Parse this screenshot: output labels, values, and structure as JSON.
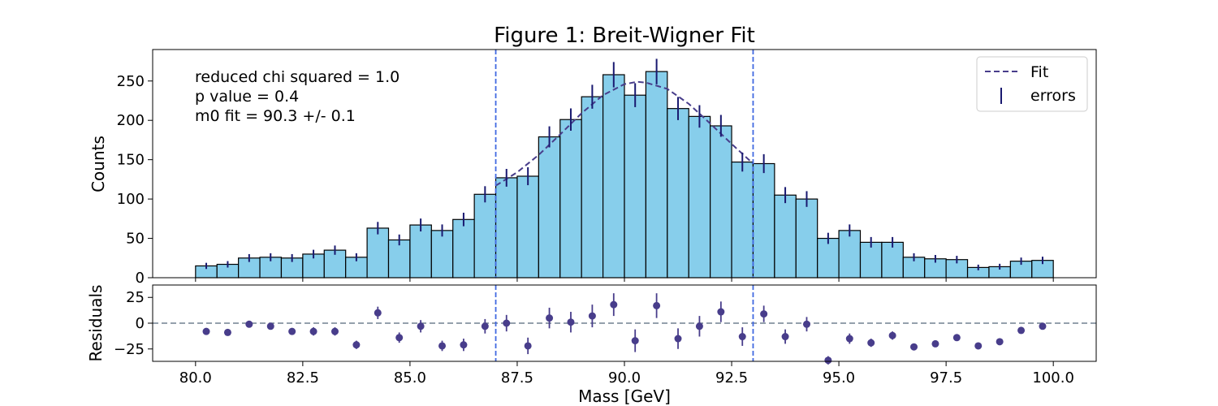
{
  "chart_data": [
    {
      "type": "bar",
      "panel": "main",
      "title": "Figure 1: Breit-Wigner Fit",
      "ylabel": "Counts",
      "xlim": [
        79,
        101
      ],
      "ylim": [
        0,
        290
      ],
      "yticks": [
        0,
        50,
        100,
        150,
        200,
        250
      ],
      "bar_color": "#87ceeb",
      "bin_width": 0.5,
      "x": [
        80.25,
        80.75,
        81.25,
        81.75,
        82.25,
        82.75,
        83.25,
        83.75,
        84.25,
        84.75,
        85.25,
        85.75,
        86.25,
        86.75,
        87.25,
        87.75,
        88.25,
        88.75,
        89.25,
        89.75,
        90.25,
        90.75,
        91.25,
        91.75,
        92.25,
        92.75,
        93.25,
        93.75,
        94.25,
        94.75,
        95.25,
        95.75,
        96.25,
        96.75,
        97.25,
        97.75,
        98.25,
        98.75,
        99.25,
        99.75
      ],
      "counts": [
        15,
        17,
        25,
        26,
        25,
        30,
        35,
        26,
        63,
        48,
        67,
        60,
        74,
        106,
        127,
        129,
        179,
        201,
        230,
        258,
        232,
        262,
        215,
        205,
        193,
        147,
        145,
        105,
        100,
        50,
        60,
        45,
        45,
        26,
        24,
        23,
        13,
        14,
        21,
        22
      ],
      "errors": [
        3.9,
        4.1,
        5.0,
        5.1,
        5.0,
        5.5,
        5.9,
        5.1,
        7.9,
        6.9,
        8.2,
        7.7,
        8.6,
        10.3,
        11.3,
        11.4,
        13.4,
        14.2,
        15.2,
        16.1,
        15.2,
        16.2,
        14.7,
        14.3,
        13.9,
        12.1,
        12.0,
        10.2,
        10.0,
        7.1,
        7.7,
        6.7,
        6.7,
        5.1,
        4.9,
        4.8,
        3.6,
        3.7,
        4.6,
        4.7
      ],
      "fit": {
        "name": "Fit",
        "style": "dashed",
        "color": "#483d8b",
        "x": [
          87.0,
          87.5,
          88.0,
          88.5,
          89.0,
          89.5,
          90.0,
          90.3,
          90.5,
          91.0,
          91.5,
          92.0,
          92.5,
          93.0
        ],
        "y": [
          117,
          134,
          156,
          182,
          209,
          232,
          246,
          249,
          248,
          240,
          221,
          196,
          170,
          145
        ]
      },
      "error_series_name": "errors",
      "error_color": "#191970",
      "vlines": [
        87.0,
        93.0
      ],
      "vline_color": "#4169e1",
      "legend_position": "top-right",
      "annotations": [
        "reduced chi squared = 1.0",
        "p value = 0.4",
        "m0 fit = 90.3 +/- 0.1"
      ]
    },
    {
      "type": "scatter",
      "panel": "residuals",
      "ylabel": "Residuals",
      "xlabel": "Mass [GeV]",
      "xlim": [
        79,
        101
      ],
      "ylim": [
        -37,
        37
      ],
      "yticks": [
        -25,
        0,
        25
      ],
      "xticks": [
        80.0,
        82.5,
        85.0,
        87.5,
        90.0,
        92.5,
        95.0,
        97.5,
        100.0
      ],
      "xtick_labels": [
        "80.0",
        "82.5",
        "85.0",
        "87.5",
        "90.0",
        "92.5",
        "95.0",
        "97.5",
        "100.0"
      ],
      "point_color": "#483d8b",
      "zero_line_color": "#708090",
      "x": [
        80.25,
        80.75,
        81.25,
        81.75,
        82.25,
        82.75,
        83.25,
        83.75,
        84.25,
        84.75,
        85.25,
        85.75,
        86.25,
        86.75,
        87.25,
        87.75,
        88.25,
        88.75,
        89.25,
        89.75,
        90.25,
        90.75,
        91.25,
        91.75,
        92.25,
        92.75,
        93.25,
        93.75,
        94.25,
        94.75,
        95.25,
        95.75,
        96.25,
        96.75,
        97.25,
        97.75,
        98.25,
        98.75,
        99.25,
        99.75
      ],
      "y": [
        -8,
        -9,
        -1,
        -3,
        -8,
        -8,
        -8,
        -21,
        10,
        -14,
        -3,
        -22,
        -21,
        -3,
        0,
        -22,
        5,
        1,
        7,
        18,
        -17,
        17,
        -15,
        -3,
        11,
        -13,
        9,
        -13,
        -1,
        -36,
        -15,
        -19,
        -12,
        -23,
        -20,
        -14,
        -22,
        -18,
        -7,
        -3
      ],
      "errors": [
        3,
        3,
        3,
        3,
        3,
        4,
        4,
        4,
        6,
        5,
        6,
        5,
        6,
        7,
        8,
        8,
        10,
        10,
        11,
        11,
        11,
        12,
        10,
        10,
        10,
        9,
        8,
        7,
        7,
        4,
        5,
        4,
        4,
        3,
        3,
        3,
        2,
        2,
        3,
        3
      ],
      "vlines": [
        87.0,
        93.0
      ]
    }
  ]
}
